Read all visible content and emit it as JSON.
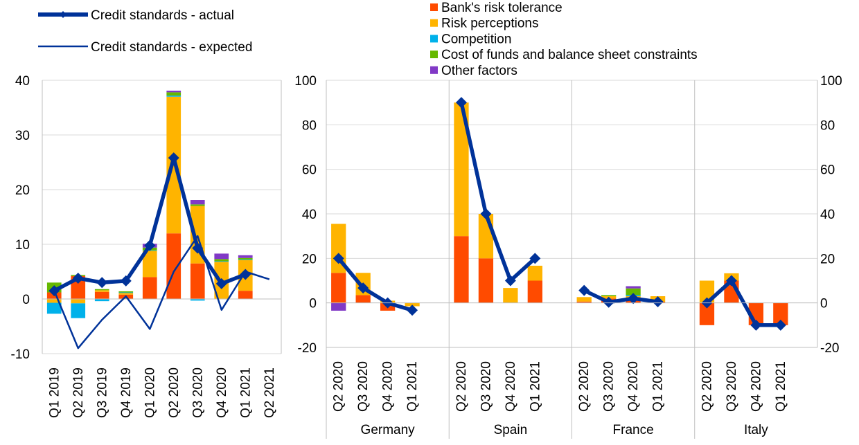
{
  "colors": {
    "banks_risk_tolerance": "#ff4b00",
    "risk_perceptions": "#ffb400",
    "competition": "#00b1ea",
    "cost_of_funds": "#65b800",
    "other_factors": "#8139c6",
    "actual_line": "#003299",
    "expected_line": "#003299",
    "gridline": "#d9d9d9",
    "axis": "#bfbfbf"
  },
  "legend": {
    "line_items": [
      {
        "key": "actual",
        "label": "Credit standards - actual"
      },
      {
        "key": "expected",
        "label": "Credit standards - expected"
      }
    ],
    "bar_items": [
      {
        "key": "banks_risk_tolerance",
        "label": "Bank's risk tolerance"
      },
      {
        "key": "risk_perceptions",
        "label": "Risk perceptions"
      },
      {
        "key": "competition",
        "label": "Competition"
      },
      {
        "key": "cost_of_funds",
        "label": "Cost of funds and balance sheet constraints"
      },
      {
        "key": "other_factors",
        "label": "Other factors"
      }
    ]
  },
  "chart_data": [
    {
      "type": "bar",
      "stacked": true,
      "ylim": [
        -10,
        40
      ],
      "yticks": [
        -10,
        0,
        10,
        20,
        30,
        40
      ],
      "grid": true,
      "categories": [
        "Q1 2019",
        "Q2 2019",
        "Q3 2019",
        "Q4 2019",
        "Q1 2020",
        "Q2 2020",
        "Q3 2020",
        "Q4 2020",
        "Q1 2021",
        "Q2 2021"
      ],
      "series": [
        {
          "key": "banks_risk_tolerance",
          "values": [
            1.2,
            4.2,
            1.3,
            0.8,
            4.0,
            12.0,
            6.5,
            0.0,
            1.5,
            null
          ]
        },
        {
          "key": "risk_perceptions",
          "values": [
            -0.7,
            -0.8,
            0.3,
            0.3,
            4.8,
            25.0,
            10.5,
            6.8,
            5.6,
            null
          ]
        },
        {
          "key": "competition",
          "values": [
            -2.0,
            -2.7,
            -0.4,
            0.1,
            0.1,
            0.2,
            -0.3,
            0.1,
            0.1,
            null
          ]
        },
        {
          "key": "cost_of_funds",
          "values": [
            1.8,
            0.2,
            0.2,
            0.2,
            0.5,
            0.6,
            0.3,
            0.4,
            0.3,
            null
          ]
        },
        {
          "key": "other_factors",
          "values": [
            0.0,
            0.0,
            0.0,
            0.0,
            0.7,
            0.3,
            0.8,
            1.0,
            0.5,
            null
          ]
        }
      ],
      "lines": [
        {
          "key": "actual",
          "values": [
            1.5,
            3.8,
            3.0,
            3.3,
            9.8,
            25.8,
            9.3,
            2.8,
            4.5,
            null
          ]
        },
        {
          "key": "expected",
          "values": [
            1.5,
            -9.0,
            -3.8,
            0.5,
            -5.5,
            5.0,
            11.5,
            -2.0,
            5.0,
            3.6
          ]
        }
      ]
    },
    {
      "type": "bar",
      "stacked": true,
      "ylim": [
        -20,
        100
      ],
      "yticks": [
        -20,
        0,
        20,
        40,
        60,
        80,
        100
      ],
      "grid": true,
      "groups": [
        {
          "name": "Germany",
          "categories": [
            "Q2 2020",
            "Q3 2020",
            "Q4 2020",
            "Q1 2021"
          ],
          "series": {
            "banks_risk_tolerance": [
              13.5,
              3.5,
              -3.5,
              0.0
            ],
            "risk_perceptions": [
              22.0,
              10.0,
              1.0,
              -1.5
            ],
            "competition": [
              0,
              0,
              0,
              0
            ],
            "cost_of_funds": [
              0,
              0,
              0,
              0
            ],
            "other_factors": [
              -3.5,
              0,
              0,
              0
            ]
          },
          "actual": [
            20.0,
            6.7,
            0.0,
            -3.3
          ]
        },
        {
          "name": "Spain",
          "categories": [
            "Q2 2020",
            "Q3 2020",
            "Q4 2020",
            "Q1 2021"
          ],
          "series": {
            "banks_risk_tolerance": [
              30.0,
              20.0,
              0.0,
              10.0
            ],
            "risk_perceptions": [
              60.0,
              20.0,
              6.7,
              6.7
            ],
            "competition": [
              0,
              0,
              0,
              0
            ],
            "cost_of_funds": [
              0,
              0,
              0,
              0
            ],
            "other_factors": [
              0,
              0,
              0,
              0
            ]
          },
          "actual": [
            90.0,
            40.0,
            10.0,
            20.0
          ]
        },
        {
          "name": "France",
          "categories": [
            "Q2 2020",
            "Q3 2020",
            "Q4 2020",
            "Q1 2021"
          ],
          "series": {
            "banks_risk_tolerance": [
              0.6,
              2.0,
              2.0,
              0.5
            ],
            "risk_perceptions": [
              2.0,
              1.0,
              1.0,
              2.5
            ],
            "competition": [
              0,
              0,
              0.5,
              0
            ],
            "cost_of_funds": [
              0,
              0.5,
              3.0,
              0
            ],
            "other_factors": [
              0,
              0,
              1.0,
              0
            ]
          },
          "actual": [
            5.6,
            0.3,
            2.0,
            0.5
          ]
        },
        {
          "name": "Italy",
          "categories": [
            "Q2 2020",
            "Q3 2020",
            "Q4 2020",
            "Q1 2021"
          ],
          "series": {
            "banks_risk_tolerance": [
              -10.0,
              10.0,
              -10.0,
              -10.0
            ],
            "risk_perceptions": [
              10.0,
              3.3,
              0.0,
              0.0
            ],
            "competition": [
              0,
              0,
              0,
              0
            ],
            "cost_of_funds": [
              0,
              0,
              0,
              0
            ],
            "other_factors": [
              0,
              0,
              0,
              0
            ]
          },
          "actual": [
            0.0,
            10.0,
            -10.0,
            -10.0
          ]
        }
      ]
    }
  ]
}
